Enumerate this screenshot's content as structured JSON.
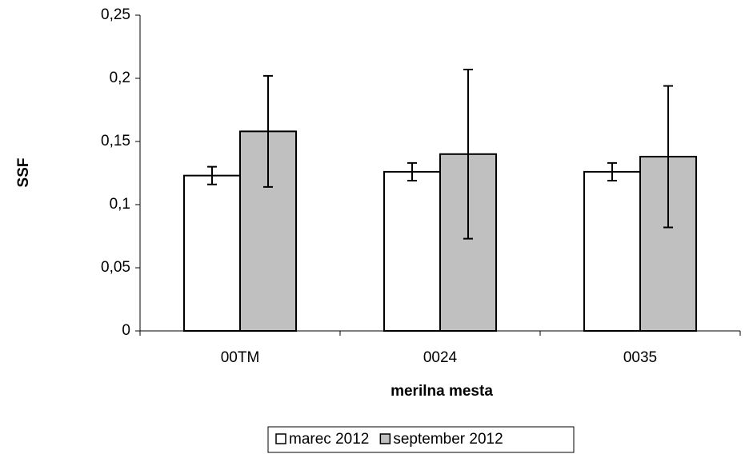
{
  "chart_data": {
    "type": "bar",
    "xlabel": "merilna mesta",
    "ylabel": "SSF",
    "categories": [
      "00TM",
      "0024",
      "0035"
    ],
    "series": [
      {
        "name": "marec 2012",
        "color": "#ffffff",
        "values": [
          0.123,
          0.126,
          0.126
        ],
        "errors": [
          0.007,
          0.007,
          0.007
        ]
      },
      {
        "name": "september 2012",
        "color": "#c0c0c0",
        "values": [
          0.158,
          0.14,
          0.138
        ],
        "errors": [
          0.044,
          0.067,
          0.056
        ]
      }
    ],
    "ylim": [
      0,
      0.25
    ],
    "yticks": [
      0,
      {
        "value": 0.05,
        "label": "0,05"
      },
      {
        "value": 0.1,
        "label": "0,1"
      },
      {
        "value": 0.15,
        "label": "0,15"
      },
      {
        "value": 0.2,
        "label": "0,2"
      },
      {
        "value": 0.25,
        "label": "0,25"
      }
    ],
    "legend": "bottom"
  }
}
